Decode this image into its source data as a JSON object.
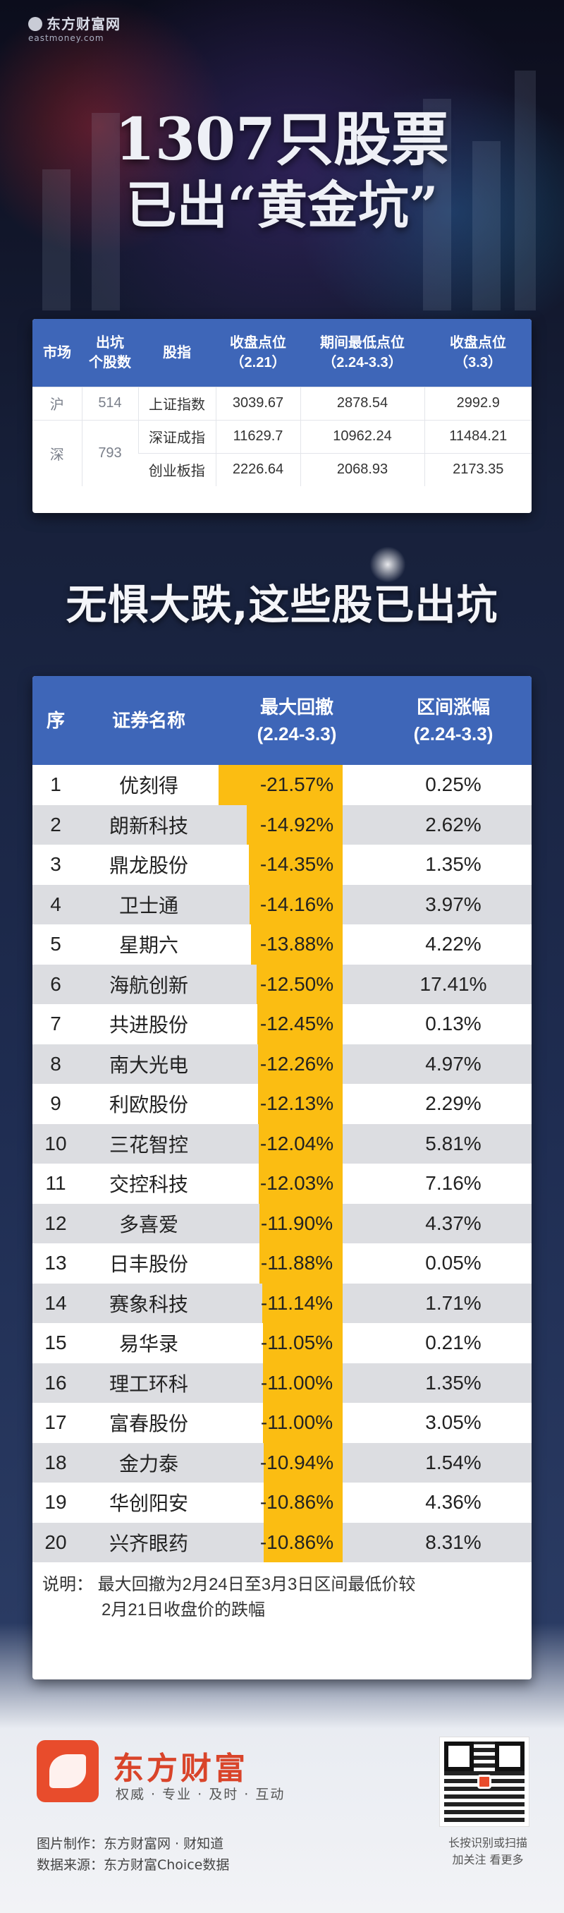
{
  "brand_top": {
    "cn": "东方财富网",
    "en": "eastmoney.com"
  },
  "headline": {
    "line1": "1307只股票",
    "line2": "已出“黄金坑”"
  },
  "summary_table": {
    "headers": [
      "市场",
      "出坑\n个股数",
      "股指",
      "收盘点位\n（2.21）",
      "期间最低点位\n（2.24-3.3）",
      "收盘点位\n（3.3）"
    ],
    "rows": [
      {
        "market": "沪",
        "count": "514",
        "index": "上证指数",
        "close_221": "3039.67",
        "low": "2878.54",
        "close_33": "2992.9"
      },
      {
        "market": "深",
        "count": "793",
        "index": "深证成指",
        "close_221": "11629.7",
        "low": "10962.24",
        "close_33": "11484.21"
      },
      {
        "market": "",
        "count": "",
        "index": "创业板指",
        "close_221": "2226.64",
        "low": "2068.93",
        "close_33": "2173.35"
      }
    ]
  },
  "subhead": "无惧大跌,这些股已出坑",
  "main_table": {
    "headers": {
      "seq": "序",
      "name": "证券名称",
      "drawdown": "最大回撤\n(2.24-3.3)",
      "change": "区间涨幅\n(2.24-3.3)"
    },
    "rows": [
      {
        "seq": "1",
        "name": "优刻得",
        "drawdown": "-21.57%",
        "change": "0.25%",
        "dd_value": -21.57
      },
      {
        "seq": "2",
        "name": "朗新科技",
        "drawdown": "-14.92%",
        "change": "2.62%",
        "dd_value": -14.92
      },
      {
        "seq": "3",
        "name": "鼎龙股份",
        "drawdown": "-14.35%",
        "change": "1.35%",
        "dd_value": -14.35
      },
      {
        "seq": "4",
        "name": "卫士通",
        "drawdown": "-14.16%",
        "change": "3.97%",
        "dd_value": -14.16
      },
      {
        "seq": "5",
        "name": "星期六",
        "drawdown": "-13.88%",
        "change": "4.22%",
        "dd_value": -13.88
      },
      {
        "seq": "6",
        "name": "海航创新",
        "drawdown": "-12.50%",
        "change": "17.41%",
        "dd_value": -12.5
      },
      {
        "seq": "7",
        "name": "共进股份",
        "drawdown": "-12.45%",
        "change": "0.13%",
        "dd_value": -12.45
      },
      {
        "seq": "8",
        "name": "南大光电",
        "drawdown": "-12.26%",
        "change": "4.97%",
        "dd_value": -12.26
      },
      {
        "seq": "9",
        "name": "利欧股份",
        "drawdown": "-12.13%",
        "change": "2.29%",
        "dd_value": -12.13
      },
      {
        "seq": "10",
        "name": "三花智控",
        "drawdown": "-12.04%",
        "change": "5.81%",
        "dd_value": -12.04
      },
      {
        "seq": "11",
        "name": "交控科技",
        "drawdown": "-12.03%",
        "change": "7.16%",
        "dd_value": -12.03
      },
      {
        "seq": "12",
        "name": "多喜爱",
        "drawdown": "-11.90%",
        "change": "4.37%",
        "dd_value": -11.9
      },
      {
        "seq": "13",
        "name": "日丰股份",
        "drawdown": "-11.88%",
        "change": "0.05%",
        "dd_value": -11.88
      },
      {
        "seq": "14",
        "name": "赛象科技",
        "drawdown": "-11.14%",
        "change": "1.71%",
        "dd_value": -11.14
      },
      {
        "seq": "15",
        "name": "易华录",
        "drawdown": "-11.05%",
        "change": "0.21%",
        "dd_value": -11.05
      },
      {
        "seq": "16",
        "name": "理工环科",
        "drawdown": "-11.00%",
        "change": "1.35%",
        "dd_value": -11.0
      },
      {
        "seq": "17",
        "name": "富春股份",
        "drawdown": "-11.00%",
        "change": "3.05%",
        "dd_value": -11.0
      },
      {
        "seq": "18",
        "name": "金力泰",
        "drawdown": "-10.94%",
        "change": "1.54%",
        "dd_value": -10.94
      },
      {
        "seq": "19",
        "name": "华创阳安",
        "drawdown": "-10.86%",
        "change": "4.36%",
        "dd_value": -10.86
      },
      {
        "seq": "20",
        "name": "兴齐眼药",
        "drawdown": "-10.86%",
        "change": "8.31%",
        "dd_value": -10.86
      }
    ],
    "bar_color": "#fbbd12",
    "header_color": "#3e66b8"
  },
  "note": {
    "line1": "说明：  最大回撤为2月24日至3月3日区间最低价较",
    "line2": "2月21日收盘价的跌幅"
  },
  "footer": {
    "logo_title": "东方财富",
    "logo_sub": "权威 · 专业 · 及时 · 互动",
    "credit1": "图片制作：东方财富网 · 财知道",
    "credit2": "数据来源：东方财富Choice数据",
    "qr_caption1": "长按识别或扫描",
    "qr_caption2": "加关注    看更多",
    "brand_color": "#e84c2c"
  }
}
